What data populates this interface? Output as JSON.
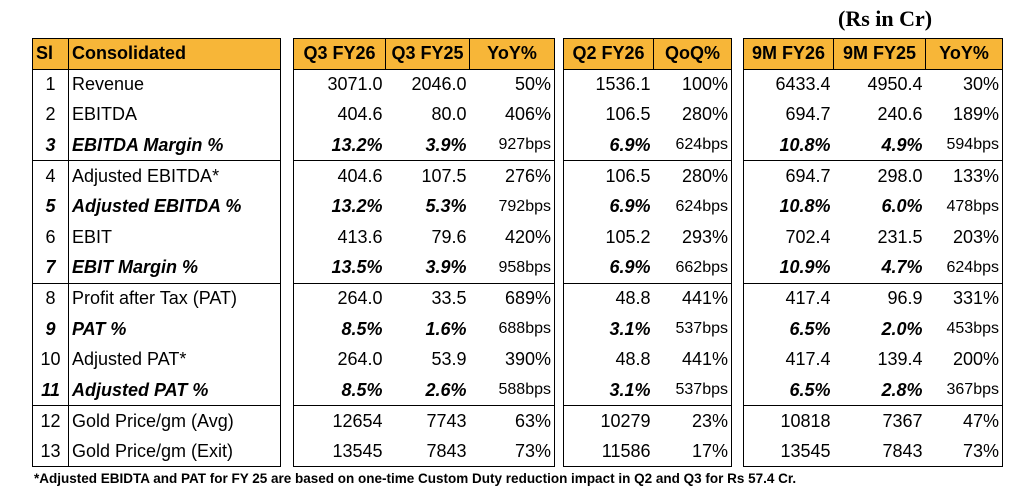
{
  "unit_label": "(Rs in Cr)",
  "left": {
    "headers": [
      "Sl",
      "Consolidated"
    ],
    "rows": [
      [
        "1",
        "Revenue"
      ],
      [
        "2",
        "EBITDA"
      ],
      [
        "3",
        "EBITDA Margin %"
      ],
      [
        "4",
        "Adjusted EBITDA*"
      ],
      [
        "5",
        "Adjusted EBITDA %"
      ],
      [
        "6",
        "EBIT"
      ],
      [
        "7",
        "EBIT Margin %"
      ],
      [
        "8",
        "Profit after Tax (PAT)"
      ],
      [
        "9",
        "PAT %"
      ],
      [
        "10",
        "Adjusted PAT*"
      ],
      [
        "11",
        "Adjusted PAT %"
      ],
      [
        "12",
        "Gold Price/gm (Avg)"
      ],
      [
        "13",
        "Gold Price/gm (Exit)"
      ]
    ]
  },
  "q3": {
    "headers": [
      "Q3 FY26",
      "Q3 FY25",
      "YoY%"
    ],
    "rows": [
      [
        "3071.0",
        "2046.0",
        "50%"
      ],
      [
        "404.6",
        "80.0",
        "406%"
      ],
      [
        "13.2%",
        "3.9%",
        "927bps"
      ],
      [
        "404.6",
        "107.5",
        "276%"
      ],
      [
        "13.2%",
        "5.3%",
        "792bps"
      ],
      [
        "413.6",
        "79.6",
        "420%"
      ],
      [
        "13.5%",
        "3.9%",
        "958bps"
      ],
      [
        "264.0",
        "33.5",
        "689%"
      ],
      [
        "8.5%",
        "1.6%",
        "688bps"
      ],
      [
        "264.0",
        "53.9",
        "390%"
      ],
      [
        "8.5%",
        "2.6%",
        "588bps"
      ],
      [
        "12654",
        "7743",
        "63%"
      ],
      [
        "13545",
        "7843",
        "73%"
      ]
    ]
  },
  "q2": {
    "headers": [
      "Q2 FY26",
      "QoQ%"
    ],
    "rows": [
      [
        "1536.1",
        "100%"
      ],
      [
        "106.5",
        "280%"
      ],
      [
        "6.9%",
        "624bps"
      ],
      [
        "106.5",
        "280%"
      ],
      [
        "6.9%",
        "624bps"
      ],
      [
        "105.2",
        "293%"
      ],
      [
        "6.9%",
        "662bps"
      ],
      [
        "48.8",
        "441%"
      ],
      [
        "3.1%",
        "537bps"
      ],
      [
        "48.8",
        "441%"
      ],
      [
        "3.1%",
        "537bps"
      ],
      [
        "10279",
        "23%"
      ],
      [
        "11586",
        "17%"
      ]
    ]
  },
  "nine_m": {
    "headers": [
      "9M FY26",
      "9M FY25",
      "YoY%"
    ],
    "rows": [
      [
        "6433.4",
        "4950.4",
        "30%"
      ],
      [
        "694.7",
        "240.6",
        "189%"
      ],
      [
        "10.8%",
        "4.9%",
        "594bps"
      ],
      [
        "694.7",
        "298.0",
        "133%"
      ],
      [
        "10.8%",
        "6.0%",
        "478bps"
      ],
      [
        "702.4",
        "231.5",
        "203%"
      ],
      [
        "10.9%",
        "4.7%",
        "624bps"
      ],
      [
        "417.4",
        "96.9",
        "331%"
      ],
      [
        "6.5%",
        "2.0%",
        "453bps"
      ],
      [
        "417.4",
        "139.4",
        "200%"
      ],
      [
        "6.5%",
        "2.8%",
        "367bps"
      ],
      [
        "10818",
        "7367",
        "47%"
      ],
      [
        "13545",
        "7843",
        "73%"
      ]
    ]
  },
  "footnote": "*Adjusted EBIDTA and PAT for FY 25 are based on one-time Custom Duty reduction impact in Q2 and Q3 for Rs 57.4 Cr."
}
